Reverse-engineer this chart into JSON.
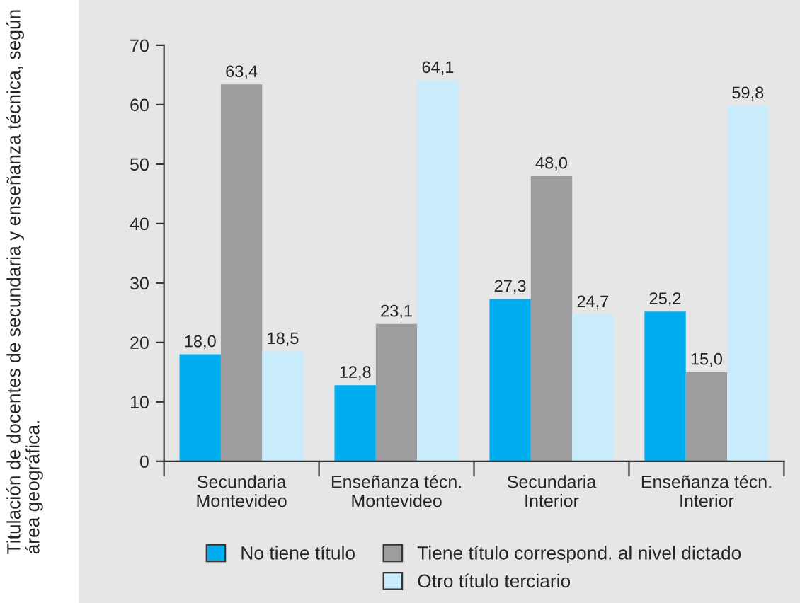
{
  "chart_data": {
    "type": "bar",
    "title": "Titulación de docentes de secundaria y enseñanza técnica, según área geográfica.",
    "categories": [
      "Secundaria\nMontevideo",
      "Enseñanza técn.\nMontevideo",
      "Secundaria\nInterior",
      "Enseñanza técn.\nInterior"
    ],
    "series": [
      {
        "name": "No tiene título",
        "color": "#00aeef",
        "values": [
          18.0,
          12.8,
          27.3,
          25.2
        ],
        "value_labels": [
          "18,0",
          "12,8",
          "27,3",
          "25,2"
        ]
      },
      {
        "name": "Tiene título correspond. al nivel dictado",
        "color": "#9d9d9f",
        "values": [
          63.4,
          23.1,
          48.0,
          15.0
        ],
        "value_labels": [
          "63,4",
          "23,1",
          "48,0",
          "15,0"
        ]
      },
      {
        "name": "Otro título terciario",
        "color": "#c8ecfb",
        "values": [
          18.5,
          64.1,
          24.7,
          59.8
        ],
        "value_labels": [
          "18,5",
          "64,1",
          "24,7",
          "59,8"
        ]
      }
    ],
    "ylim": [
      0,
      70
    ],
    "yticks": [
      0,
      10,
      20,
      30,
      40,
      50,
      60,
      70
    ],
    "grid": false,
    "legend": "bottom"
  }
}
